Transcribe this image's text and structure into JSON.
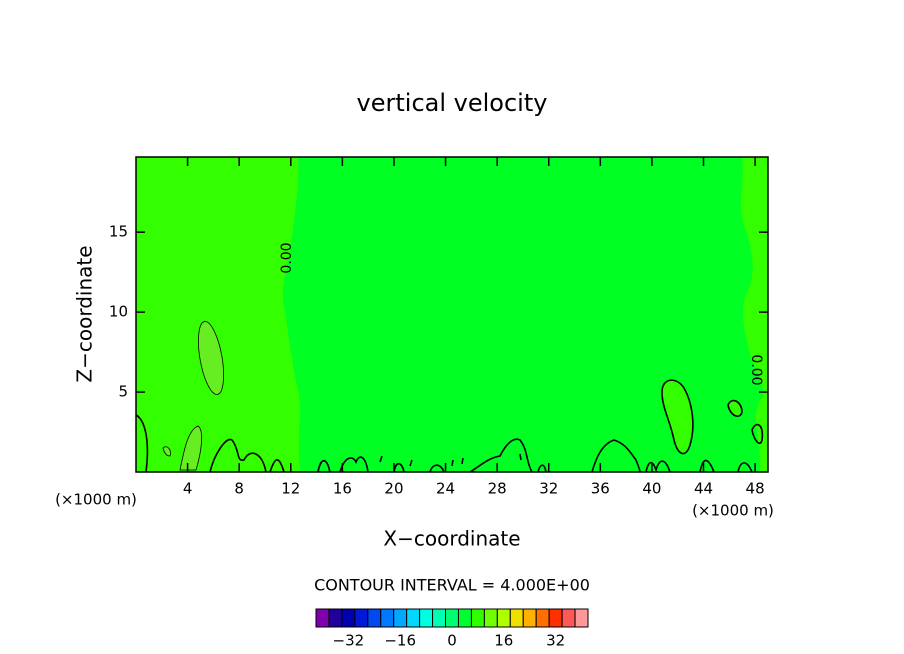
{
  "chart_data": {
    "type": "contour",
    "title": "vertical velocity",
    "x_label": "X−coordinate",
    "y_label": "Z−coordinate",
    "x_unit_left": "(×1000 m)",
    "x_unit_right": "(×1000 m)",
    "xlim": [
      0,
      49
    ],
    "ylim": [
      0,
      19.7
    ],
    "xticks": [
      4,
      8,
      12,
      16,
      20,
      24,
      28,
      32,
      36,
      40,
      44,
      48
    ],
    "yticks": [
      5,
      10,
      15
    ],
    "contour_labels": [
      "0.00",
      "0.00"
    ],
    "contour_interval": "CONTOUR INTERVAL = 4.000E+00",
    "colorbar": {
      "lim": [
        -42,
        42
      ],
      "ticks": [
        {
          "value": -32,
          "label": "−32"
        },
        {
          "value": -16,
          "label": "−16"
        },
        0,
        16,
        32
      ],
      "colors": [
        "#8000b0",
        "#20009a",
        "#0000b0",
        "#0018d8",
        "#0048f0",
        "#0078ff",
        "#00a8ff",
        "#00d8ff",
        "#00ffe0",
        "#00ffb0",
        "#00ff70",
        "#00ff30",
        "#30ff00",
        "#70ff00",
        "#b0ff00",
        "#f0e000",
        "#ffb000",
        "#ff7000",
        "#ff3000",
        "#ff5858",
        "#ff9898"
      ]
    }
  }
}
